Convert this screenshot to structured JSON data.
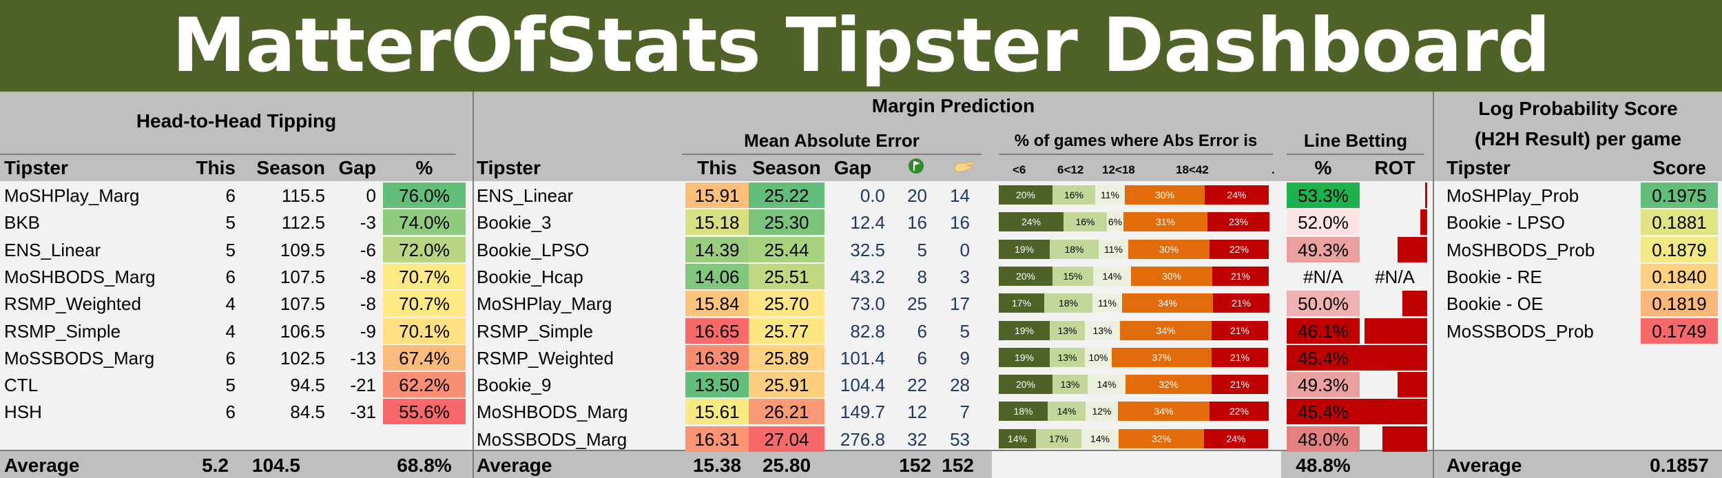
{
  "banner": {
    "title": "MatterOfStats Tipster Dashboard"
  },
  "h2h": {
    "title": "Head-to-Head Tipping",
    "columns": [
      "Tipster",
      "This",
      "Season",
      "Gap",
      "%"
    ],
    "rows": [
      {
        "tipster": "MoSHPlay_Marg",
        "this": "6",
        "season": "115.5",
        "gap": "0",
        "pct": "76.0%",
        "color": "#63be7b"
      },
      {
        "tipster": "BKB",
        "this": "5",
        "season": "112.5",
        "gap": "-3",
        "pct": "74.0%",
        "color": "#8fca7e"
      },
      {
        "tipster": "ENS_Linear",
        "this": "5",
        "season": "109.5",
        "gap": "-6",
        "pct": "72.0%",
        "color": "#bad581"
      },
      {
        "tipster": "MoSHBODS_Marg",
        "this": "6",
        "season": "107.5",
        "gap": "-8",
        "pct": "70.7%",
        "color": "#fde883"
      },
      {
        "tipster": "RSMP_Weighted",
        "this": "4",
        "season": "107.5",
        "gap": "-8",
        "pct": "70.7%",
        "color": "#fde883"
      },
      {
        "tipster": "RSMP_Simple",
        "this": "4",
        "season": "106.5",
        "gap": "-9",
        "pct": "70.1%",
        "color": "#fee082"
      },
      {
        "tipster": "MoSSBODS_Marg",
        "this": "6",
        "season": "102.5",
        "gap": "-13",
        "pct": "67.4%",
        "color": "#fcbb7b"
      },
      {
        "tipster": "CTL",
        "this": "5",
        "season": "94.5",
        "gap": "-21",
        "pct": "62.2%",
        "color": "#f98e73"
      },
      {
        "tipster": "HSH",
        "this": "6",
        "season": "84.5",
        "gap": "-31",
        "pct": "55.6%",
        "color": "#f8696b"
      }
    ],
    "footer": {
      "label": "Average",
      "this": "5.2",
      "season": "104.5",
      "pct": "68.8%"
    }
  },
  "margin": {
    "title": "Margin Prediction",
    "mae_title": "Mean Absolute Error",
    "pct_title": "% of games where Abs Error is",
    "line_title": "Line Betting",
    "columns": [
      "Tipster",
      "This",
      "Season",
      "Gap",
      "%",
      "ROT"
    ],
    "icons": [
      "flag-icon",
      "hand-icon"
    ],
    "buckets": [
      "<6",
      "6<12",
      "12<18",
      "18<42",
      "."
    ],
    "bucket_colors": [
      "#4f6228",
      "#c4d79b",
      "#ebf1de",
      "#e26b0a",
      "#c00000"
    ],
    "rows": [
      {
        "tipster": "ENS_Linear",
        "this": "15.91",
        "this_color": "#fcbf7b",
        "season": "25.22",
        "season_color": "#63be7b",
        "gap": "0.0",
        "c1": "20",
        "c2": "14",
        "dist": [
          20,
          16,
          11,
          30,
          24
        ],
        "dist_labels": [
          "20%",
          "16%",
          "11%",
          "30%",
          "24%"
        ],
        "line_pct": "53.3%",
        "line_color": "#1eb24e",
        "rot": -0.01
      },
      {
        "tipster": "Bookie_3",
        "this": "15.18",
        "this_color": "#d7df81",
        "season": "25.30",
        "season_color": "#7cc47d",
        "gap": "12.4",
        "c1": "16",
        "c2": "16",
        "dist": [
          24,
          16,
          6,
          31,
          23
        ],
        "dist_labels": [
          "24%",
          "16%",
          "6%",
          "31%",
          "23%"
        ],
        "line_pct": "52.0%",
        "line_color": "#fce4e4",
        "rot": -0.04
      },
      {
        "tipster": "Bookie_LPSO",
        "this": "14.39",
        "this_color": "#9bcc7f",
        "season": "25.44",
        "season_color": "#a9d27f",
        "gap": "32.5",
        "c1": "5",
        "c2": "0",
        "dist": [
          19,
          18,
          11,
          30,
          22
        ],
        "dist_labels": [
          "19%",
          "18%",
          "11%",
          "30%",
          "22%"
        ],
        "line_pct": "49.3%",
        "line_color": "#eba0a0",
        "rot": -0.18
      },
      {
        "tipster": "Bookie_Hcap",
        "this": "14.06",
        "this_color": "#83c67e",
        "season": "25.51",
        "season_color": "#c2d880",
        "gap": "43.2",
        "c1": "8",
        "c2": "3",
        "dist": [
          20,
          15,
          14,
          30,
          21
        ],
        "dist_labels": [
          "20%",
          "15%",
          "14%",
          "30%",
          "21%"
        ],
        "line_pct": "#N/A",
        "line_color": "",
        "rot": null,
        "rot_text": "#N/A"
      },
      {
        "tipster": "MoSHPlay_Marg",
        "this": "15.84",
        "this_color": "#fcc47c",
        "season": "25.70",
        "season_color": "#fde683",
        "gap": "73.0",
        "c1": "25",
        "c2": "17",
        "dist": [
          17,
          18,
          11,
          34,
          21
        ],
        "dist_labels": [
          "17%",
          "18%",
          "11%",
          "34%",
          "21%"
        ],
        "line_pct": "50.0%",
        "line_color": "#efb1b1",
        "rot": -0.15
      },
      {
        "tipster": "RSMP_Simple",
        "this": "16.65",
        "this_color": "#f8696b",
        "season": "25.77",
        "season_color": "#fee783",
        "gap": "82.8",
        "c1": "6",
        "c2": "5",
        "dist": [
          19,
          13,
          13,
          34,
          21
        ],
        "dist_labels": [
          "19%",
          "13%",
          "13%",
          "34%",
          "21%"
        ],
        "line_pct": "46.1%",
        "line_color": "#c00000",
        "rot": -0.38
      },
      {
        "tipster": "RSMP_Weighted",
        "this": "16.39",
        "this_color": "#f98b72",
        "season": "25.89",
        "season_color": "#fed180",
        "gap": "101.4",
        "c1": "6",
        "c2": "9",
        "dist": [
          19,
          13,
          10,
          37,
          21
        ],
        "dist_labels": [
          "19%",
          "13%",
          "10%",
          "37%",
          "21%"
        ],
        "line_pct": "45.4%",
        "line_color": "#c00000",
        "rot": -0.42
      },
      {
        "tipster": "Bookie_9",
        "this": "13.50",
        "this_color": "#63be7b",
        "season": "25.91",
        "season_color": "#fdce7e",
        "gap": "104.4",
        "c1": "22",
        "c2": "28",
        "dist": [
          20,
          13,
          14,
          32,
          21
        ],
        "dist_labels": [
          "20%",
          "13%",
          "14%",
          "32%",
          "21%"
        ],
        "line_pct": "49.3%",
        "line_color": "#eba0a0",
        "rot": -0.18
      },
      {
        "tipster": "MoSHBODS_Marg",
        "this": "15.61",
        "this_color": "#f9e983",
        "season": "26.21",
        "season_color": "#fa9975",
        "gap": "149.7",
        "c1": "12",
        "c2": "7",
        "dist": [
          18,
          14,
          12,
          34,
          22
        ],
        "dist_labels": [
          "18%",
          "14%",
          "12%",
          "34%",
          "22%"
        ],
        "line_pct": "45.4%",
        "line_color": "#c00000",
        "rot": -0.42
      },
      {
        "tipster": "MoSSBODS_Marg",
        "this": "16.31",
        "this_color": "#fa9474",
        "season": "27.04",
        "season_color": "#f8696b",
        "gap": "276.8",
        "c1": "32",
        "c2": "53",
        "dist": [
          14,
          17,
          14,
          32,
          24
        ],
        "dist_labels": [
          "14%",
          "17%",
          "14%",
          "32%",
          "24%"
        ],
        "line_pct": "48.0%",
        "line_color": "#e48080",
        "rot": -0.27
      }
    ],
    "footer": {
      "label": "Average",
      "this": "15.38",
      "season": "25.80",
      "c1": "152",
      "c2": "152",
      "line_pct": "48.8%"
    }
  },
  "logprob": {
    "title_line1": "Log Probability Score",
    "title_line2": "(H2H Result) per game",
    "columns": [
      "Tipster",
      "Score"
    ],
    "rows": [
      {
        "tipster": "MoSHPlay_Prob",
        "score": "0.1975",
        "color": "#63be7b"
      },
      {
        "tipster": "Bookie - LPSO",
        "score": "0.1881",
        "color": "#e2e383"
      },
      {
        "tipster": "MoSHBODS_Prob",
        "score": "0.1879",
        "color": "#f2e884"
      },
      {
        "tipster": "Bookie - RE",
        "score": "0.1840",
        "color": "#fdd17f"
      },
      {
        "tipster": "Bookie - OE",
        "score": "0.1819",
        "color": "#fcb77a"
      },
      {
        "tipster": "MoSSBODS_Prob",
        "score": "0.1749",
        "color": "#f8696b"
      }
    ],
    "footer": {
      "label": "Average",
      "score": "0.1857"
    }
  }
}
